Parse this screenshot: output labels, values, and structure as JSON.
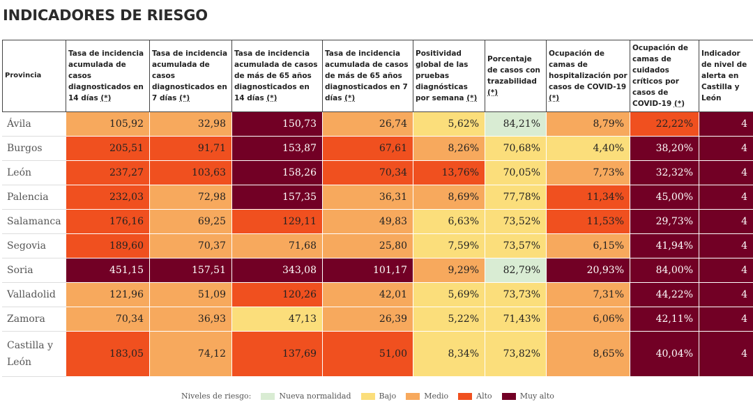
{
  "title": "INDICADORES DE RIESGO",
  "colors": {
    "nueva": "#d9ecd3",
    "bajo": "#fbde7b",
    "medio": "#f7a95d",
    "alto": "#f0501f",
    "muy_alto": "#720025"
  },
  "headers": [
    "Provincia",
    "Tasa de incidencia acumulada de casos diagnosticados en 14 días (*)",
    "Tasa de incidencia acumulada de casos diagnosticados en 7 días (*)",
    "Tasa de incidencia acumulada de casos de más de 65 años diagnosticados en 14 días (*)",
    "Tasa de incidencia acumulada de casos de más de 65 años diagnosticados en 7 días (*)",
    "Positividad global de las pruebas diagnósticas por semana (*)",
    "Porcentaje de casos con trazabilidad (*)",
    "Ocupación de camas de hospitalización por casos de COVID-19 (*)",
    "Ocupación de camas de cuidados críticos por casos de COVID-19 (*)",
    "Indicador de nivel de alerta en Castilla y León"
  ],
  "rows": [
    {
      "provincia": "Ávila",
      "values": [
        "105,92",
        "32,98",
        "150,73",
        "26,74",
        "5,62%",
        "84,21%",
        "8,79%",
        "22,22%",
        "4"
      ],
      "levels": [
        "medio",
        "medio",
        "muy_alto",
        "medio",
        "bajo",
        "nueva",
        "medio",
        "alto",
        "muy_alto"
      ]
    },
    {
      "provincia": "Burgos",
      "values": [
        "205,51",
        "91,71",
        "153,87",
        "67,61",
        "8,26%",
        "70,68%",
        "4,40%",
        "38,20%",
        "4"
      ],
      "levels": [
        "alto",
        "alto",
        "muy_alto",
        "alto",
        "medio",
        "bajo",
        "bajo",
        "muy_alto",
        "muy_alto"
      ]
    },
    {
      "provincia": "León",
      "values": [
        "237,27",
        "103,63",
        "158,26",
        "70,34",
        "13,76%",
        "70,05%",
        "7,73%",
        "32,32%",
        "4"
      ],
      "levels": [
        "alto",
        "alto",
        "muy_alto",
        "alto",
        "alto",
        "bajo",
        "medio",
        "muy_alto",
        "muy_alto"
      ]
    },
    {
      "provincia": "Palencia",
      "values": [
        "232,03",
        "72,98",
        "157,35",
        "36,31",
        "8,69%",
        "77,78%",
        "11,34%",
        "45,00%",
        "4"
      ],
      "levels": [
        "alto",
        "medio",
        "muy_alto",
        "medio",
        "medio",
        "bajo",
        "alto",
        "muy_alto",
        "muy_alto"
      ]
    },
    {
      "provincia": "Salamanca",
      "values": [
        "176,16",
        "69,25",
        "129,11",
        "49,83",
        "6,63%",
        "73,52%",
        "11,53%",
        "29,73%",
        "4"
      ],
      "levels": [
        "alto",
        "medio",
        "alto",
        "medio",
        "bajo",
        "bajo",
        "alto",
        "muy_alto",
        "muy_alto"
      ]
    },
    {
      "provincia": "Segovia",
      "values": [
        "189,60",
        "70,37",
        "71,68",
        "25,80",
        "7,59%",
        "73,57%",
        "6,15%",
        "41,94%",
        "4"
      ],
      "levels": [
        "alto",
        "medio",
        "medio",
        "medio",
        "bajo",
        "bajo",
        "medio",
        "muy_alto",
        "muy_alto"
      ]
    },
    {
      "provincia": "Soria",
      "values": [
        "451,15",
        "157,51",
        "343,08",
        "101,17",
        "9,29%",
        "82,79%",
        "20,93%",
        "84,00%",
        "4"
      ],
      "levels": [
        "muy_alto",
        "muy_alto",
        "muy_alto",
        "muy_alto",
        "medio",
        "nueva",
        "muy_alto",
        "muy_alto",
        "muy_alto"
      ]
    },
    {
      "provincia": "Valladolid",
      "values": [
        "121,96",
        "51,09",
        "120,26",
        "42,01",
        "5,69%",
        "73,73%",
        "7,31%",
        "44,22%",
        "4"
      ],
      "levels": [
        "medio",
        "medio",
        "alto",
        "medio",
        "bajo",
        "bajo",
        "medio",
        "muy_alto",
        "muy_alto"
      ]
    },
    {
      "provincia": "Zamora",
      "values": [
        "70,34",
        "36,93",
        "47,13",
        "26,39",
        "5,22%",
        "71,43%",
        "6,06%",
        "42,11%",
        "4"
      ],
      "levels": [
        "medio",
        "medio",
        "bajo",
        "medio",
        "bajo",
        "bajo",
        "medio",
        "muy_alto",
        "muy_alto"
      ]
    },
    {
      "provincia": "Castilla y León",
      "values": [
        "183,05",
        "74,12",
        "137,69",
        "51,00",
        "8,34%",
        "73,82%",
        "8,65%",
        "40,04%",
        "4"
      ],
      "levels": [
        "alto",
        "medio",
        "alto",
        "alto",
        "bajo",
        "bajo",
        "medio",
        "muy_alto",
        "muy_alto"
      ]
    }
  ],
  "legend": {
    "label": "Niveles de riesgo:",
    "items": [
      {
        "key": "nueva",
        "label": "Nueva normalidad"
      },
      {
        "key": "bajo",
        "label": "Bajo"
      },
      {
        "key": "medio",
        "label": "Medio"
      },
      {
        "key": "alto",
        "label": "Alto"
      },
      {
        "key": "muy_alto",
        "label": "Muy alto"
      }
    ]
  }
}
